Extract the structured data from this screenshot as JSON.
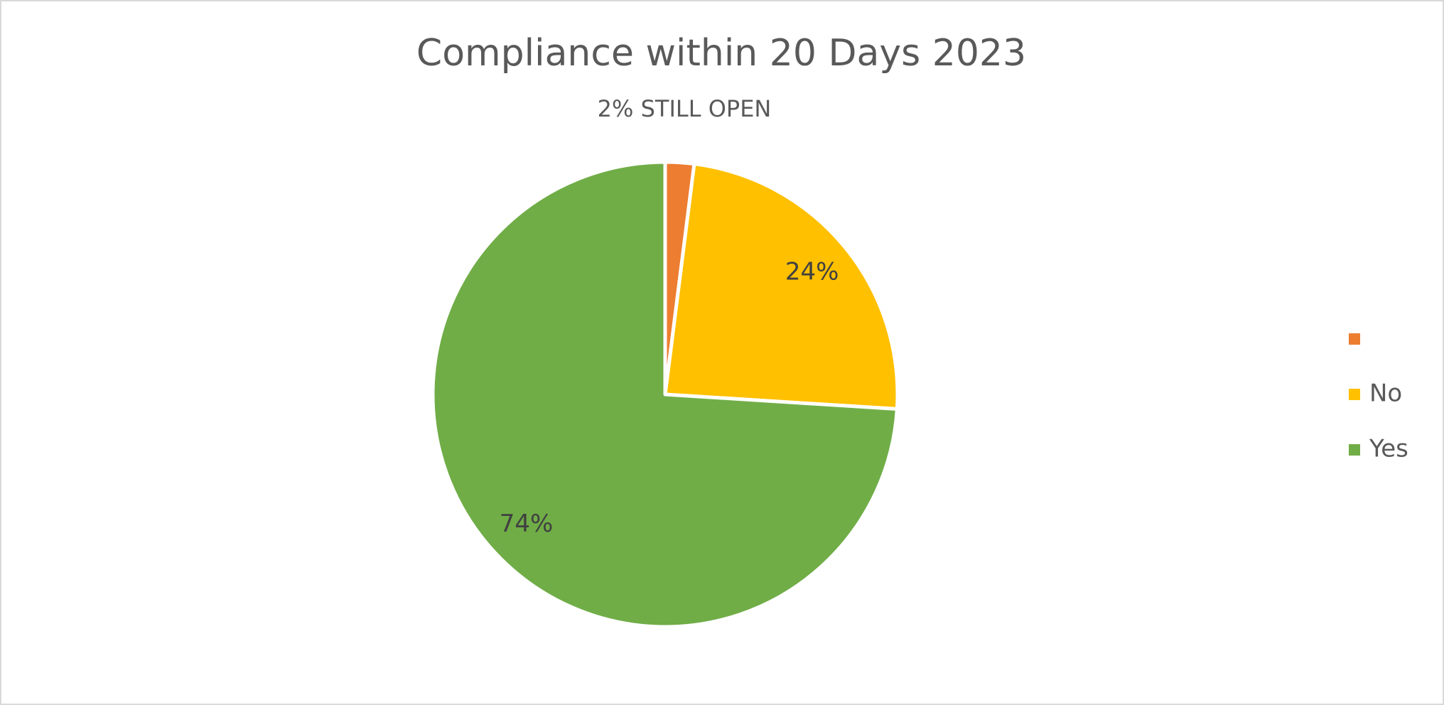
{
  "chart_data": {
    "type": "pie",
    "title": "Compliance within 20 Days 2023",
    "subtitle": "2% STILL OPEN",
    "categories": [
      null,
      "No",
      "Yes"
    ],
    "values": [
      2,
      24,
      74
    ],
    "value_labels": [
      null,
      "24%",
      "74%"
    ],
    "colors": [
      "#ed7d31",
      "#ffc000",
      "#70ad47"
    ],
    "legend": "right"
  }
}
